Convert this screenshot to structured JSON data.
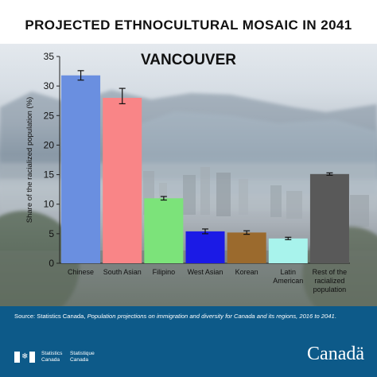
{
  "title": "PROJECTED ETHNOCULTURAL MOSAIC IN 2041",
  "chart_data": {
    "type": "bar",
    "title": "VANCOUVER",
    "ylabel": "Share of the racialized population (%)",
    "ylim": [
      0,
      35
    ],
    "yticks": [
      0,
      5,
      10,
      15,
      20,
      25,
      30,
      35
    ],
    "grid": false,
    "categories": [
      [
        "Chinese"
      ],
      [
        "South Asian"
      ],
      [
        "Filipino"
      ],
      [
        "West Asian"
      ],
      [
        "Korean"
      ],
      [
        "Latin",
        "American"
      ],
      [
        "Rest of the",
        "racialized",
        "population"
      ]
    ],
    "values": [
      31.8,
      28.0,
      11.0,
      5.4,
      5.2,
      4.2,
      15.1
    ],
    "error_low": [
      31.0,
      27.0,
      10.7,
      5.0,
      4.9,
      4.0,
      14.9
    ],
    "error_high": [
      32.6,
      29.6,
      11.3,
      5.8,
      5.5,
      4.4,
      15.3
    ],
    "colors": [
      "#6a8fe0",
      "#f98587",
      "#7ce37a",
      "#1b1ae6",
      "#9b6a2d",
      "#a8f3ec",
      "#595959"
    ]
  },
  "source": {
    "prefix": "Source: Statistics Canada, ",
    "italic": "Population projections on immigration and diversity for Canada and its regions, 2016 to 2041",
    "suffix": "."
  },
  "footer": {
    "sig_en": [
      "Statistics",
      "Canada"
    ],
    "sig_fr": [
      "Statistique",
      "Canada"
    ],
    "wordmark": "Canadä"
  }
}
